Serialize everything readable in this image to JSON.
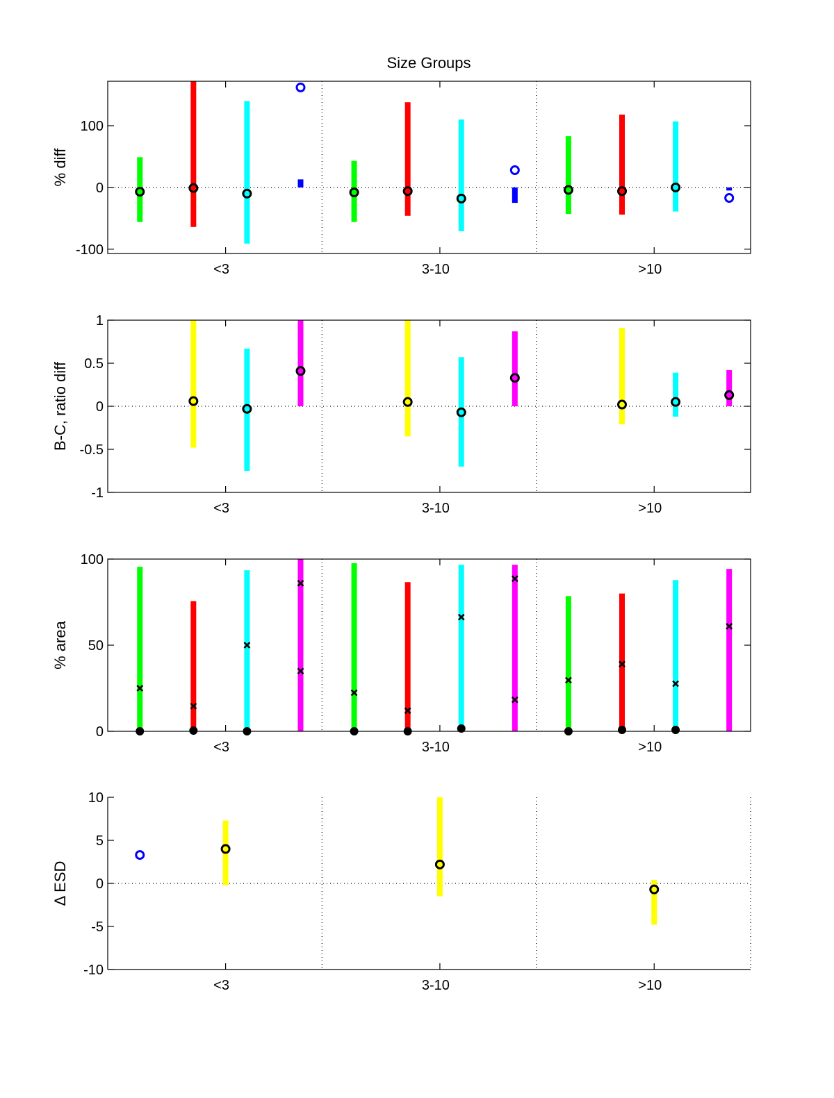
{
  "chart_data": {
    "type": "errorbar",
    "title": "Size Groups",
    "xlim": [
      0.5,
      3.5
    ],
    "xticks": [
      1.05,
      2.05,
      3.05
    ],
    "xticklabels": [
      "<3",
      "3-10",
      ">10"
    ],
    "group_dividers": [
      1.5,
      2.5
    ],
    "colors": {
      "green": "#00ff00",
      "red": "#ff0000",
      "cyan": "#00ffff",
      "blue": "#0000ff",
      "magenta": "#ff00ff",
      "yellow": "#ffff00"
    },
    "panels": [
      {
        "ylabel": "% diff",
        "ylim": [
          -107,
          172
        ],
        "yticks": [
          -100,
          0,
          100
        ],
        "zero_line": true,
        "bars": [
          {
            "x": 0.65,
            "lo": -56,
            "hi": 49,
            "color": "green"
          },
          {
            "x": 0.9,
            "lo": -64,
            "hi": 172,
            "color": "red"
          },
          {
            "x": 1.15,
            "lo": -91,
            "hi": 140,
            "color": "cyan"
          },
          {
            "x": 1.4,
            "lo": 0,
            "hi": 13,
            "color": "blue"
          },
          {
            "x": 1.65,
            "lo": -56,
            "hi": 43,
            "color": "green"
          },
          {
            "x": 1.9,
            "lo": -46,
            "hi": 138,
            "color": "red"
          },
          {
            "x": 2.15,
            "lo": -71,
            "hi": 110,
            "color": "cyan"
          },
          {
            "x": 2.4,
            "lo": -25,
            "hi": 0,
            "color": "blue"
          },
          {
            "x": 2.65,
            "lo": -43,
            "hi": 83,
            "color": "green"
          },
          {
            "x": 2.9,
            "lo": -44,
            "hi": 118,
            "color": "red"
          },
          {
            "x": 3.15,
            "lo": -39,
            "hi": 107,
            "color": "cyan"
          },
          {
            "x": 3.4,
            "lo": -5,
            "hi": 0,
            "color": "blue"
          }
        ],
        "markers": [
          {
            "x": 0.65,
            "y": -7,
            "type": "circle"
          },
          {
            "x": 0.9,
            "y": -1,
            "type": "circle"
          },
          {
            "x": 1.15,
            "y": -10,
            "type": "circle"
          },
          {
            "x": 1.4,
            "y": 162,
            "type": "circle-blue"
          },
          {
            "x": 1.65,
            "y": -8,
            "type": "circle"
          },
          {
            "x": 1.9,
            "y": -6,
            "type": "circle"
          },
          {
            "x": 2.15,
            "y": -18,
            "type": "circle"
          },
          {
            "x": 2.4,
            "y": 28,
            "type": "circle-blue"
          },
          {
            "x": 2.65,
            "y": -4,
            "type": "circle"
          },
          {
            "x": 2.9,
            "y": -6,
            "type": "circle"
          },
          {
            "x": 3.15,
            "y": 0,
            "type": "circle"
          },
          {
            "x": 3.4,
            "y": -17,
            "type": "circle-blue"
          }
        ]
      },
      {
        "ylabel": "B-C, ratio diff",
        "ylim": [
          -1,
          1
        ],
        "yticks": [
          -1,
          -0.5,
          0,
          0.5,
          1
        ],
        "zero_line": true,
        "bars": [
          {
            "x": 0.9,
            "lo": -0.48,
            "hi": 1.0,
            "color": "yellow"
          },
          {
            "x": 1.15,
            "lo": -0.75,
            "hi": 0.67,
            "color": "cyan"
          },
          {
            "x": 1.4,
            "lo": 0,
            "hi": 1.0,
            "color": "magenta"
          },
          {
            "x": 1.9,
            "lo": -0.35,
            "hi": 1.0,
            "color": "yellow"
          },
          {
            "x": 2.15,
            "lo": -0.7,
            "hi": 0.57,
            "color": "cyan"
          },
          {
            "x": 2.4,
            "lo": 0,
            "hi": 0.87,
            "color": "magenta"
          },
          {
            "x": 2.9,
            "lo": -0.21,
            "hi": 0.91,
            "color": "yellow"
          },
          {
            "x": 3.15,
            "lo": -0.12,
            "hi": 0.39,
            "color": "cyan"
          },
          {
            "x": 3.4,
            "lo": 0,
            "hi": 0.42,
            "color": "magenta"
          }
        ],
        "markers": [
          {
            "x": 0.9,
            "y": 0.06,
            "type": "circle"
          },
          {
            "x": 1.15,
            "y": -0.03,
            "type": "circle"
          },
          {
            "x": 1.4,
            "y": 0.41,
            "type": "circle"
          },
          {
            "x": 1.9,
            "y": 0.05,
            "type": "circle"
          },
          {
            "x": 2.15,
            "y": -0.07,
            "type": "circle"
          },
          {
            "x": 2.4,
            "y": 0.33,
            "type": "circle"
          },
          {
            "x": 2.9,
            "y": 0.02,
            "type": "circle"
          },
          {
            "x": 3.15,
            "y": 0.05,
            "type": "circle"
          },
          {
            "x": 3.4,
            "y": 0.13,
            "type": "circle"
          }
        ]
      },
      {
        "ylabel": "% area",
        "ylim": [
          0,
          100
        ],
        "yticks": [
          0,
          50,
          100
        ],
        "zero_line": false,
        "bars": [
          {
            "x": 0.65,
            "lo": 0,
            "hi": 95.5,
            "color": "green"
          },
          {
            "x": 0.9,
            "lo": 0,
            "hi": 75.6,
            "color": "red"
          },
          {
            "x": 1.15,
            "lo": 0,
            "hi": 93.5,
            "color": "cyan"
          },
          {
            "x": 1.4,
            "lo": 0,
            "hi": 100,
            "color": "magenta"
          },
          {
            "x": 1.65,
            "lo": 0,
            "hi": 97.6,
            "color": "green"
          },
          {
            "x": 1.9,
            "lo": 0,
            "hi": 86.6,
            "color": "red"
          },
          {
            "x": 2.15,
            "lo": 0,
            "hi": 96.7,
            "color": "cyan"
          },
          {
            "x": 2.4,
            "lo": 0,
            "hi": 96.7,
            "color": "magenta"
          },
          {
            "x": 2.65,
            "lo": 0,
            "hi": 78.5,
            "color": "green"
          },
          {
            "x": 2.9,
            "lo": 0,
            "hi": 80,
            "color": "red"
          },
          {
            "x": 3.15,
            "lo": 0,
            "hi": 87.8,
            "color": "cyan"
          },
          {
            "x": 3.4,
            "lo": 0,
            "hi": 94.3,
            "color": "magenta"
          }
        ],
        "markers": [
          {
            "x": 0.65,
            "y": 25,
            "type": "x"
          },
          {
            "x": 0.65,
            "y": 0,
            "type": "dot"
          },
          {
            "x": 0.9,
            "y": 14.6,
            "type": "x"
          },
          {
            "x": 0.9,
            "y": 0.4,
            "type": "dot"
          },
          {
            "x": 1.15,
            "y": 50,
            "type": "x"
          },
          {
            "x": 1.15,
            "y": 0,
            "type": "dot"
          },
          {
            "x": 1.4,
            "y": 86,
            "type": "x"
          },
          {
            "x": 1.4,
            "y": 35,
            "type": "x"
          },
          {
            "x": 1.65,
            "y": 22.4,
            "type": "x"
          },
          {
            "x": 1.65,
            "y": 0,
            "type": "dot"
          },
          {
            "x": 1.9,
            "y": 12,
            "type": "x"
          },
          {
            "x": 1.9,
            "y": 0,
            "type": "dot"
          },
          {
            "x": 2.15,
            "y": 66.3,
            "type": "x"
          },
          {
            "x": 2.15,
            "y": 1.6,
            "type": "dot"
          },
          {
            "x": 2.4,
            "y": 88.6,
            "type": "x"
          },
          {
            "x": 2.4,
            "y": 18.3,
            "type": "x"
          },
          {
            "x": 2.65,
            "y": 29.7,
            "type": "x"
          },
          {
            "x": 2.65,
            "y": 0,
            "type": "dot"
          },
          {
            "x": 2.9,
            "y": 39,
            "type": "x"
          },
          {
            "x": 2.9,
            "y": 0.8,
            "type": "dot"
          },
          {
            "x": 3.15,
            "y": 27.6,
            "type": "x"
          },
          {
            "x": 3.15,
            "y": 0.8,
            "type": "dot"
          },
          {
            "x": 3.4,
            "y": 61,
            "type": "x"
          }
        ]
      },
      {
        "ylabel": "Δ ESD",
        "ylim": [
          -10,
          10
        ],
        "yticks": [
          -10,
          -5,
          0,
          5,
          10
        ],
        "zero_line": true,
        "open_box": true,
        "bars": [
          {
            "x": 1.05,
            "lo": -0.2,
            "hi": 7.3,
            "color": "yellow"
          },
          {
            "x": 2.05,
            "lo": -1.5,
            "hi": 10,
            "color": "yellow"
          },
          {
            "x": 3.05,
            "lo": -4.8,
            "hi": 0.4,
            "color": "yellow"
          }
        ],
        "markers": [
          {
            "x": 0.65,
            "y": 3.3,
            "type": "circle-blue"
          },
          {
            "x": 1.05,
            "y": 4.0,
            "type": "circle"
          },
          {
            "x": 2.05,
            "y": 2.2,
            "type": "circle"
          },
          {
            "x": 3.05,
            "y": -0.7,
            "type": "circle"
          }
        ]
      }
    ]
  }
}
